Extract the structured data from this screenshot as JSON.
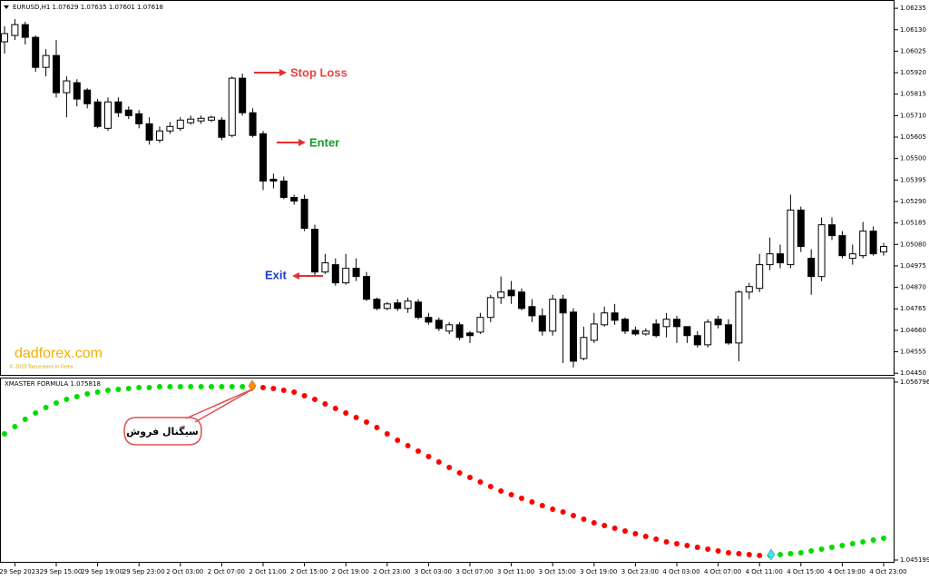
{
  "chart_data": [
    {
      "type": "candlestick",
      "title": "EURUSD,H1  1.07629 1.07635 1.07601 1.07618",
      "categories": [
        null,
        "29 Sep 2023",
        null,
        null,
        null,
        "29 Sep 15:00",
        null,
        null,
        null,
        "29 Sep 19:00",
        null,
        null,
        null,
        "29 Sep 23:00",
        null,
        null,
        null,
        "2 Oct 03:00",
        null,
        null,
        null,
        "2 Oct 07:00",
        null,
        null,
        null,
        "2 Oct 11:00",
        null,
        null,
        null,
        "2 Oct 15:00",
        null,
        null,
        null,
        "2 Oct 19:00",
        null,
        null,
        null,
        "2 Oct 23:00",
        null,
        null,
        null,
        "3 Oct 03:00",
        null,
        null,
        null,
        "3 Oct 07:00",
        null,
        null,
        null,
        "3 Oct 11:00",
        null,
        null,
        null,
        "3 Oct 15:00",
        null,
        null,
        null,
        "3 Oct 19:00",
        null,
        null,
        null,
        "3 Oct 23:00",
        null,
        null,
        null,
        "4 Oct 03:00",
        null,
        null,
        null,
        "4 Oct 07:00",
        null,
        null,
        null,
        "4 Oct 11:00",
        null,
        null,
        null,
        "4 Oct 15:00",
        null,
        null,
        null,
        "4 Oct 19:00",
        null,
        null,
        null,
        "4 Oct 23:00"
      ],
      "open": [
        1.06071,
        1.06102,
        1.06155,
        1.06093,
        1.05946,
        1.06004,
        1.05822,
        1.05871,
        1.05835,
        1.05777,
        1.05648,
        1.05777,
        1.05737,
        1.05719,
        1.0567,
        1.0559,
        1.05635,
        1.05648,
        1.05675,
        1.05684,
        1.05688,
        1.05688,
        1.05613,
        1.05893,
        1.05724,
        1.05621,
        1.05399,
        1.0539,
        1.0531,
        1.05301,
        1.05154,
        1.04945,
        1.04981,
        1.04892,
        1.04963,
        1.04923,
        1.04812,
        1.04767,
        1.04794,
        1.04767,
        1.04798,
        1.04723,
        1.04709,
        1.04656,
        1.04687,
        1.04647,
        1.04651,
        1.04723,
        1.0482,
        1.04856,
        1.04847,
        1.04776,
        1.04731,
        1.04656,
        1.04812,
        1.04749,
        1.04522,
        1.04611,
        1.04687,
        1.04745,
        1.04714,
        1.0466,
        1.04642,
        1.04691,
        1.04678,
        1.04714,
        1.04678,
        1.04634,
        1.04589,
        1.04714,
        1.04687,
        1.04598,
        1.04847,
        1.04865,
        1.04981,
        1.05034,
        1.04981,
        1.05248,
        1.05012,
        1.04923,
        1.05176,
        1.05123,
        1.05012,
        1.05025,
        1.05145,
        1.05043
      ],
      "high": [
        1.06147,
        1.06182,
        1.06169,
        1.06102,
        1.06035,
        1.0608,
        1.05902,
        1.05888,
        1.05844,
        1.05791,
        1.05799,
        1.05799,
        1.05755,
        1.05737,
        1.05702,
        1.05657,
        1.05679,
        1.05702,
        1.0571,
        1.0571,
        1.0571,
        1.05702,
        1.05902,
        1.05915,
        1.05746,
        1.05635,
        1.05426,
        1.05412,
        1.05323,
        1.05323,
        1.05176,
        1.05034,
        1.05012,
        1.05034,
        1.05012,
        1.04945,
        1.0482,
        1.04798,
        1.04812,
        1.0482,
        1.04812,
        1.04745,
        1.04723,
        1.047,
        1.047,
        1.04656,
        1.04745,
        1.04834,
        1.04923,
        1.04901,
        1.04865,
        1.04812,
        1.04767,
        1.04834,
        1.04834,
        1.04767,
        1.04678,
        1.04745,
        1.04776,
        1.04789,
        1.04723,
        1.04678,
        1.04669,
        1.04714,
        1.04745,
        1.04731,
        1.04678,
        1.04656,
        1.04714,
        1.04731,
        1.04714,
        1.04856,
        1.04892,
        1.05034,
        1.05114,
        1.05079,
        1.05323,
        1.05265,
        1.05056,
        1.05212,
        1.05212,
        1.05145,
        1.05079,
        1.0519,
        1.05168,
        1.05087
      ],
      "low": [
        1.06013,
        1.0608,
        1.06058,
        1.05924,
        1.05902,
        1.05799,
        1.05702,
        1.05755,
        1.05746,
        1.05648,
        1.05635,
        1.05702,
        1.05693,
        1.05648,
        1.05568,
        1.05577,
        1.05621,
        1.05635,
        1.05666,
        1.0567,
        1.05679,
        1.0559,
        1.05604,
        1.0571,
        1.05604,
        1.05346,
        1.05354,
        1.05301,
        1.05274,
        1.05145,
        1.04923,
        1.04936,
        1.04878,
        1.04883,
        1.04901,
        1.04803,
        1.04758,
        1.04758,
        1.04754,
        1.04745,
        1.04714,
        1.04687,
        1.04656,
        1.04642,
        1.04611,
        1.04598,
        1.04642,
        1.047,
        1.04789,
        1.04789,
        1.04758,
        1.047,
        1.04634,
        1.04634,
        1.045,
        1.04478,
        1.04513,
        1.04598,
        1.04678,
        1.04687,
        1.04642,
        1.04634,
        1.04634,
        1.04625,
        1.04625,
        1.04598,
        1.04598,
        1.04576,
        1.04576,
        1.04669,
        1.04589,
        1.04509,
        1.04812,
        1.04847,
        1.04954,
        1.04963,
        1.04963,
        1.05043,
        1.04834,
        1.04901,
        1.05101,
        1.05012,
        1.04981,
        1.05012,
        1.05025,
        1.05025
      ],
      "close": [
        1.06111,
        1.06155,
        1.06093,
        1.05946,
        1.06004,
        1.05822,
        1.0588,
        1.05791,
        1.05768,
        1.05657,
        1.05777,
        1.05724,
        1.0571,
        1.0567,
        1.0559,
        1.05635,
        1.05657,
        1.05688,
        1.05693,
        1.05697,
        1.05702,
        1.05604,
        1.05893,
        1.05724,
        1.05613,
        1.0539,
        1.0539,
        1.0531,
        1.05292,
        1.05159,
        1.04945,
        1.0499,
        1.04892,
        1.04963,
        1.04923,
        1.04812,
        1.04767,
        1.04789,
        1.04767,
        1.04803,
        1.04723,
        1.047,
        1.04669,
        1.04687,
        1.04625,
        1.04634,
        1.04723,
        1.0482,
        1.04847,
        1.04829,
        1.04767,
        1.04731,
        1.04656,
        1.04812,
        1.04745,
        1.04509,
        1.04625,
        1.04691,
        1.04745,
        1.04709,
        1.04656,
        1.04642,
        1.04656,
        1.04634,
        1.04714,
        1.04678,
        1.04634,
        1.04589,
        1.047,
        1.04687,
        1.04598,
        1.04847,
        1.04874,
        1.04981,
        1.05034,
        1.0499,
        1.05248,
        1.0507,
        1.04923,
        1.05176,
        1.05123,
        1.05025,
        1.05034,
        1.05145,
        1.05034,
        1.0507
      ],
      "up_color": "#ffffff",
      "down_color": "#000000",
      "ylim": [
        1.04442,
        1.06271
      ],
      "yticks": [
        1.06235,
        {
          "value": 1.0613,
          "label": "1.06130"
        },
        1.06025,
        {
          "value": 1.0592,
          "label": "1.05920"
        },
        1.05815,
        {
          "value": 1.0571,
          "label": "1.05710"
        },
        1.05605,
        {
          "value": 1.055,
          "label": "1.05500"
        },
        1.05395,
        {
          "value": 1.0529,
          "label": "1.05290"
        },
        1.05185,
        {
          "value": 1.0508,
          "label": "1.05080"
        },
        1.04975,
        {
          "value": 1.0487,
          "label": "1.04870"
        },
        1.04765,
        {
          "value": 1.0466,
          "label": "1.04660"
        },
        1.04555,
        {
          "value": 1.0445,
          "label": "1.04450"
        }
      ],
      "annotations": [
        "Stop Loss",
        "Enter",
        "Exit"
      ]
    },
    {
      "type": "dots",
      "title": "XMASTER FORMULA 1.075818",
      "series": [
        {
          "color": "#00dd00",
          "values": [
            1.053423,
            1.053897,
            1.05437,
            1.054784,
            1.055139,
            1.055435,
            1.055672,
            1.055849,
            1.056027,
            1.056145,
            1.056263,
            1.056323,
            1.056382,
            1.056441,
            1.056441,
            1.0565,
            1.0565,
            1.0565,
            1.0565,
            1.0565,
            1.0565,
            1.0565,
            1.0565,
            1.0565,
            1.0565,
            null,
            null,
            null,
            null,
            null,
            null,
            null,
            null,
            null,
            null,
            null,
            null,
            null,
            null,
            null,
            null,
            null,
            null,
            null,
            null,
            null,
            null,
            null,
            null,
            null,
            null,
            null,
            null,
            null,
            null,
            null,
            null,
            null,
            null,
            null,
            null,
            null,
            null,
            null,
            null,
            null,
            null,
            null,
            null,
            null,
            null,
            null,
            null,
            null,
            1.045495,
            1.045554,
            1.045613,
            1.045672,
            1.04579,
            1.045909,
            1.046027,
            1.046145,
            1.046264,
            1.046382,
            1.0465,
            1.046619
          ]
        },
        {
          "color": "#ff0000",
          "values": [
            null,
            null,
            null,
            null,
            null,
            null,
            null,
            null,
            null,
            null,
            null,
            null,
            null,
            null,
            null,
            null,
            null,
            null,
            null,
            null,
            null,
            null,
            null,
            null,
            null,
            1.056441,
            1.056382,
            1.056263,
            1.056145,
            1.055908,
            1.055672,
            1.055376,
            1.05508,
            1.054784,
            1.054488,
            1.054193,
            1.053837,
            1.053423,
            1.053009,
            1.052654,
            1.052299,
            1.051944,
            1.051589,
            1.051234,
            1.050879,
            1.050583,
            1.050287,
            1.049991,
            1.049696,
            1.049459,
            1.049222,
            1.048986,
            1.048749,
            1.048512,
            1.048335,
            1.048098,
            1.047861,
            1.047625,
            1.047447,
            1.04727,
            1.047092,
            1.046915,
            1.046737,
            1.04656,
            1.046382,
            1.046264,
            1.046145,
            1.046027,
            1.045909,
            1.04579,
            1.045672,
            1.045613,
            1.045554,
            1.045495,
            null,
            null,
            null,
            null,
            null,
            null,
            null,
            null,
            null,
            null,
            null,
            null
          ]
        }
      ],
      "ylim": [
        1.045021,
        1.057033
      ],
      "yticks": [
        1.056796,
        1.045199
      ],
      "annotations": [
        "سیگنال فروش"
      ]
    }
  ],
  "watermark": {
    "site": "dadforex.com",
    "note": "© 2023 TopLessons In Forex"
  }
}
